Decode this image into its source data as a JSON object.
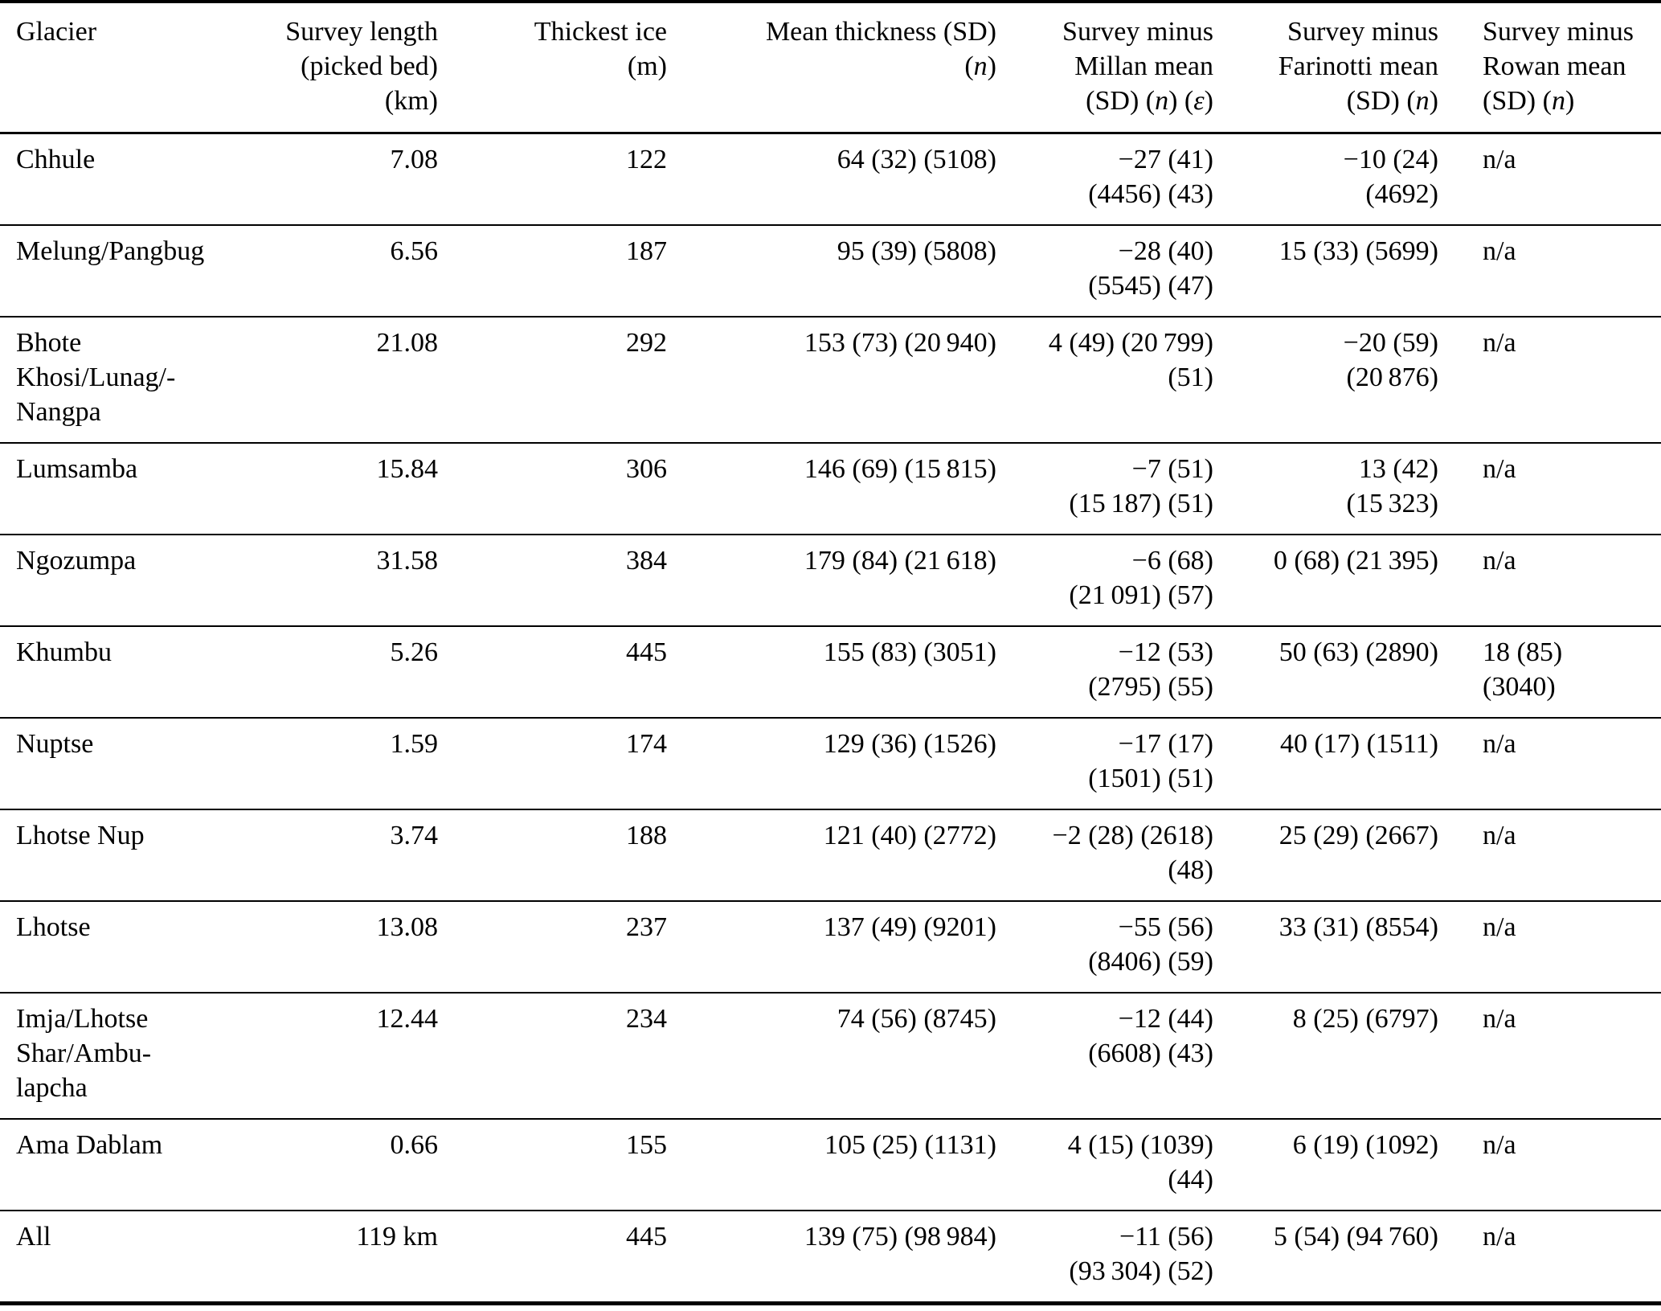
{
  "table": {
    "columns": [
      {
        "id": "glacier",
        "label_html": "Glacier",
        "align": "left"
      },
      {
        "id": "survey-length",
        "label_html": "Survey length<br>(picked bed)<br>(km)",
        "align": "right"
      },
      {
        "id": "thickest-ice",
        "label_html": "Thickest ice<br>(m)",
        "align": "right"
      },
      {
        "id": "mean-thickness",
        "label_html": "Mean thickness (SD)<br>(<i>n</i>)",
        "align": "right"
      },
      {
        "id": "survey-minus-millan",
        "label_html": "Survey minus<br>Millan mean<br>(SD) (<i>n</i>) (<i>ε</i>)",
        "align": "right"
      },
      {
        "id": "survey-minus-farinotti",
        "label_html": "Survey minus<br>Farinotti mean<br>(SD) (<i>n</i>)",
        "align": "right"
      },
      {
        "id": "survey-minus-rowan",
        "label_html": "Survey minus<br>Rowan mean<br>(SD) (<i>n</i>)",
        "align": "left"
      }
    ],
    "rows": [
      [
        "Chhule",
        "7.08",
        "122",
        "64 (32) (5108)",
        "−27 (41)\n(4456) (43)",
        "−10 (24)\n(4692)",
        "n/a"
      ],
      [
        "Melung/Pangbug",
        "6.56",
        "187",
        "95 (39) (5808)",
        "−28 (40)\n(5545) (47)",
        "15 (33) (5699)",
        "n/a"
      ],
      [
        "Bhote\nKhosi/Lunag/-\nNangpa",
        "21.08",
        "292",
        "153 (73) (20 940)",
        "4 (49) (20 799)\n(51)",
        "−20 (59)\n(20 876)",
        "n/a"
      ],
      [
        "Lumsamba",
        "15.84",
        "306",
        "146 (69) (15 815)",
        "−7 (51)\n(15 187) (51)",
        "13 (42)\n(15 323)",
        "n/a"
      ],
      [
        "Ngozumpa",
        "31.58",
        "384",
        "179 (84) (21 618)",
        "−6 (68)\n(21 091) (57)",
        "0 (68) (21 395)",
        "n/a"
      ],
      [
        "Khumbu",
        "5.26",
        "445",
        "155 (83) (3051)",
        "−12 (53)\n(2795) (55)",
        "50 (63) (2890)",
        "18 (85)\n(3040)"
      ],
      [
        "Nuptse",
        "1.59",
        "174",
        "129 (36) (1526)",
        "−17 (17)\n(1501) (51)",
        "40 (17) (1511)",
        "n/a"
      ],
      [
        "Lhotse Nup",
        "3.74",
        "188",
        "121 (40) (2772)",
        "−2 (28) (2618)\n(48)",
        "25 (29) (2667)",
        "n/a"
      ],
      [
        "Lhotse",
        "13.08",
        "237",
        "137 (49) (9201)",
        "−55 (56)\n(8406) (59)",
        "33 (31) (8554)",
        "n/a"
      ],
      [
        "Imja/Lhotse\nShar/Ambu-\nlapcha",
        "12.44",
        "234",
        "74 (56) (8745)",
        "−12 (44)\n(6608) (43)",
        "8 (25) (6797)",
        "n/a"
      ],
      [
        "Ama Dablam",
        "0.66",
        "155",
        "105 (25) (1131)",
        "4 (15) (1039)\n(44)",
        "6 (19) (1092)",
        "n/a"
      ],
      [
        "All",
        "119 km",
        "445",
        "139 (75) (98 984)",
        "−11 (56)\n(93 304) (52)",
        "5 (54) (94 760)",
        "n/a"
      ]
    ]
  }
}
